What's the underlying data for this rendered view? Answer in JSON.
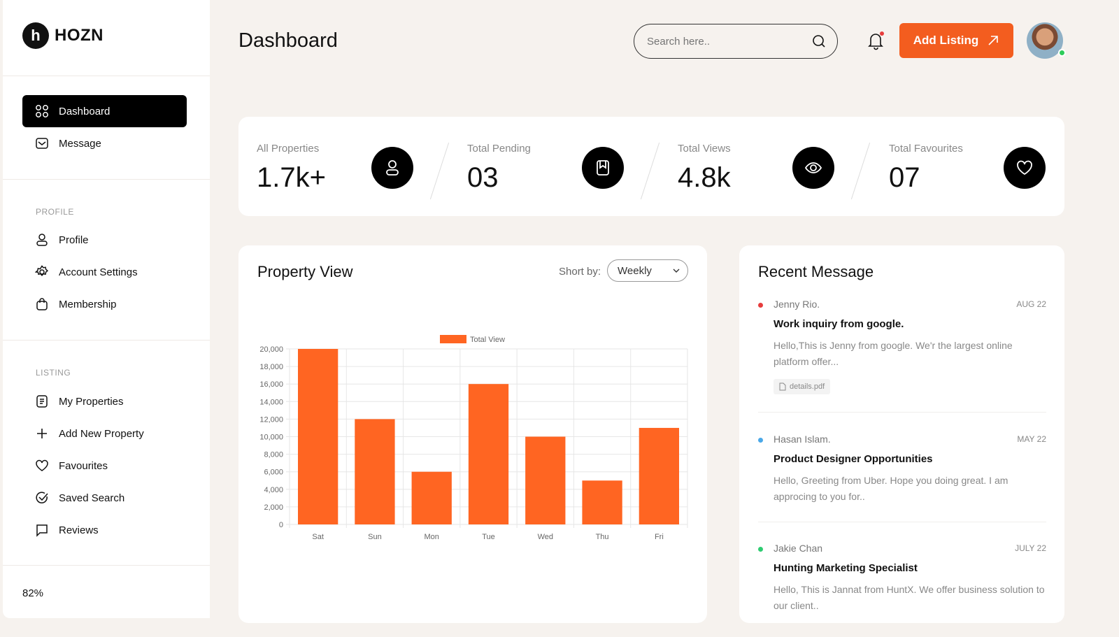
{
  "brand": {
    "name": "HOZN",
    "mark": "h"
  },
  "sidebar": {
    "main": [
      {
        "label": "Dashboard",
        "icon": "grid-icon",
        "active": true
      },
      {
        "label": "Message",
        "icon": "mail-icon"
      }
    ],
    "profile_title": "PROFILE",
    "profile": [
      {
        "label": "Profile",
        "icon": "user-icon"
      },
      {
        "label": "Account Settings",
        "icon": "gear-icon"
      },
      {
        "label": "Membership",
        "icon": "bag-icon"
      }
    ],
    "listing_title": "LISTING",
    "listing": [
      {
        "label": "My Properties",
        "icon": "document-icon"
      },
      {
        "label": "Add New Property",
        "icon": "plus-icon"
      },
      {
        "label": "Favourites",
        "icon": "heart-icon"
      },
      {
        "label": "Saved Search",
        "icon": "check-circle-icon"
      },
      {
        "label": "Reviews",
        "icon": "comment-icon"
      }
    ],
    "zoom": "82%"
  },
  "header": {
    "title": "Dashboard",
    "search_placeholder": "Search here..",
    "add_listing": "Add Listing",
    "accent": "#f35d1f"
  },
  "stats": [
    {
      "label": "All Properties",
      "value": "1.7k+",
      "icon": "user-icon"
    },
    {
      "label": "Total Pending",
      "value": "03",
      "icon": "bookmark-icon"
    },
    {
      "label": "Total Views",
      "value": "4.8k",
      "icon": "eye-icon"
    },
    {
      "label": "Total Favourites",
      "value": "07",
      "icon": "heart-icon"
    }
  ],
  "property_view": {
    "title": "Property View",
    "sort_label": "Short by:",
    "sort_value": "Weekly"
  },
  "chart_data": {
    "type": "bar",
    "categories": [
      "Sat",
      "Sun",
      "Mon",
      "Tue",
      "Wed",
      "Thu",
      "Fri"
    ],
    "series": [
      {
        "name": "Total View",
        "values": [
          20000,
          12000,
          6000,
          16000,
          10000,
          5000,
          11000
        ],
        "color": "#ff6522"
      }
    ],
    "ylim": [
      0,
      20000
    ],
    "yticks": [
      "0",
      "2,000",
      "4,000",
      "6,000",
      "8,000",
      "10,000",
      "12,000",
      "14,000",
      "16,000",
      "18,000",
      "20,000"
    ],
    "grid": true,
    "legend": "top"
  },
  "messages": {
    "title": "Recent Message",
    "items": [
      {
        "name": "Jenny Rio.",
        "date": "AUG 22",
        "subject": "Work inquiry from google.",
        "body": "Hello,This is Jenny from google. We'r the largest online platform offer...",
        "attachment": "details.pdf",
        "dot": "#e63c3c"
      },
      {
        "name": "Hasan Islam.",
        "date": "MAY 22",
        "subject": "Product Designer Opportunities",
        "body": "Hello, Greeting from Uber. Hope you doing great. I am approcing to you for..",
        "dot": "#4aa8e8"
      },
      {
        "name": "Jakie Chan",
        "date": "JULY 22",
        "subject": "Hunting Marketing Specialist",
        "body": "Hello, This is Jannat from HuntX. We offer business solution to our client..",
        "dot": "#2ecc71"
      }
    ]
  }
}
